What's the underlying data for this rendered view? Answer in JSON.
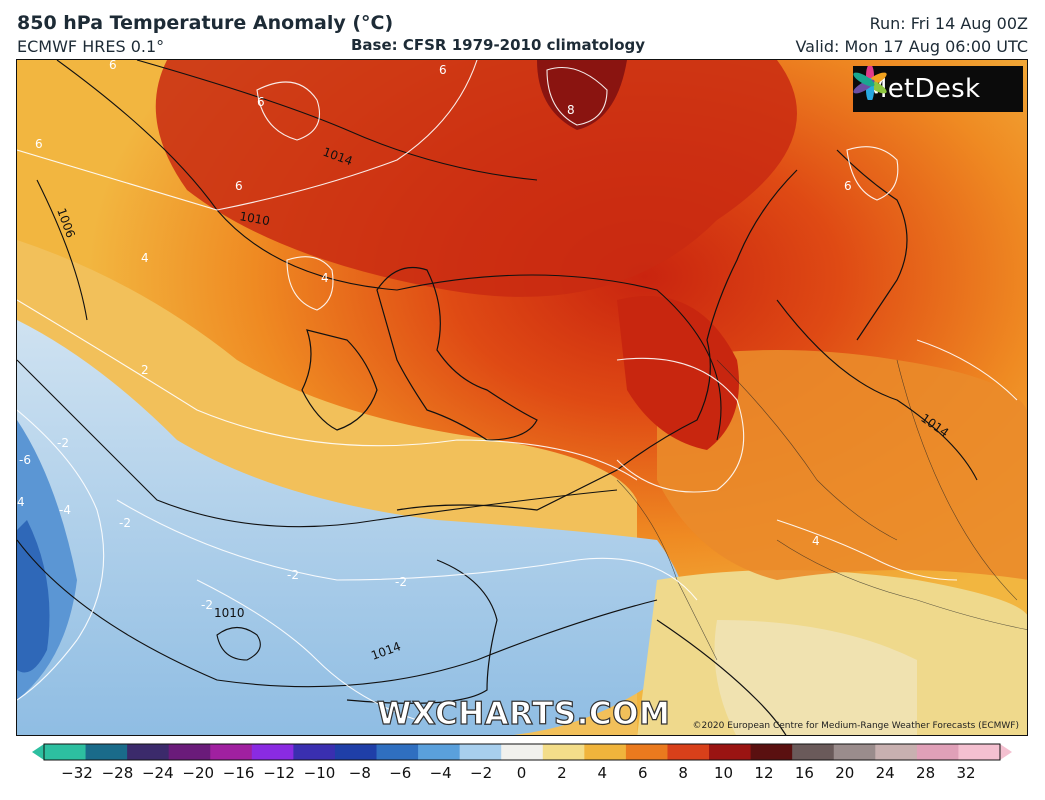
{
  "header": {
    "title": "850 hPa Temperature Anomaly (°C)",
    "model": "ECMWF HRES 0.1°",
    "base": "Base: CFSR 1979-2010 climatology",
    "run": "Run: Fri 14 Aug 00Z",
    "valid": "Valid: Mon 17 Aug 06:00 UTC"
  },
  "map": {
    "isobar_labels": [
      "1014",
      "1010",
      "1006",
      "1010",
      "1014",
      "1014"
    ],
    "anomaly_labels": [
      "6",
      "6",
      "8",
      "6",
      "6",
      "6",
      "4",
      "4",
      "2",
      "-2",
      "-6",
      "-4",
      "-2",
      "-2",
      "-2",
      "-2",
      "4",
      "6",
      "4"
    ]
  },
  "branding": {
    "logo_text": "MetDesk",
    "watermark": "WXCHARTS.COM",
    "copyright": "©2020 European Centre for Medium-Range Weather Forecasts (ECMWF)"
  },
  "colorbar": {
    "ticks": [
      "−32",
      "−28",
      "−24",
      "−20",
      "−16",
      "−12",
      "−10",
      "−8",
      "−6",
      "−4",
      "−2",
      "0",
      "2",
      "4",
      "6",
      "8",
      "10",
      "12",
      "16",
      "20",
      "24",
      "28",
      "32"
    ],
    "colors": [
      "#2dbfa0",
      "#1a6b8a",
      "#3b2a6b",
      "#6a1b7a",
      "#a020a0",
      "#8a2be2",
      "#3a2fb0",
      "#1f3fa8",
      "#2f6fc0",
      "#5aa0dc",
      "#a8cfee",
      "#f1f1ee",
      "#f3dd8a",
      "#f0b43c",
      "#ea7a1e",
      "#d8401a",
      "#9a1412",
      "#5a1010",
      "#6a5a5a",
      "#9a8c8c",
      "#c8b0b0",
      "#e0a0b8",
      "#f4c0d0"
    ]
  }
}
